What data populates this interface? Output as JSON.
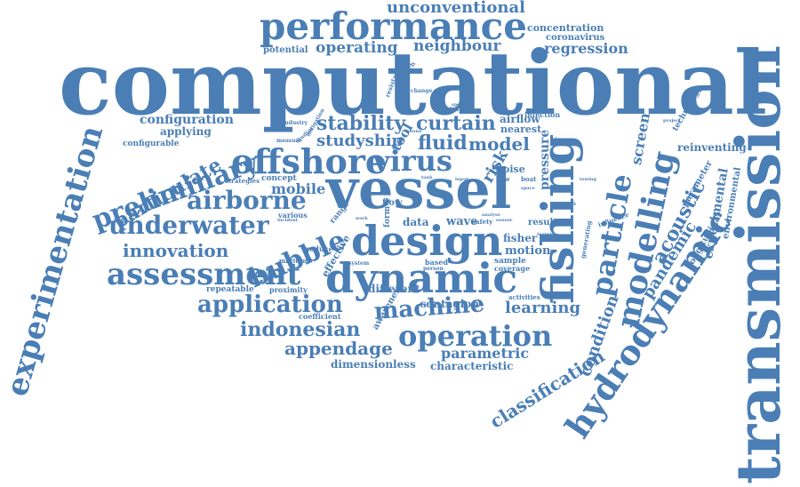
{
  "color": "#4a7eb5",
  "words": {
    "computational": "computational",
    "transmission": "transmission",
    "vessel": "vessel",
    "fishing": "fishing",
    "design": "design",
    "dynamic": "dynamic",
    "performance": "performance",
    "experimentation": "experimentation",
    "assessment": "assessment",
    "offshore": "offshore",
    "virus": "virus",
    "preliminary": "preliminary",
    "hydrodynamic": "hydrodynamic",
    "modelling": "modelling",
    "particle": "particle",
    "operation": "operation",
    "bubble": "bubble",
    "airborne": "airborne",
    "underwater": "underwater",
    "machine": "machine",
    "application": "application",
    "particulate": "particulate",
    "indonesian": "indonesian",
    "innovation": "innovation",
    "appendage": "appendage",
    "unconventional": "unconventional",
    "stability": "stability",
    "curtain": "curtain",
    "fluid": "fluid",
    "model": "model",
    "classification": "classification",
    "acoustic": "acoustic",
    "pandemic": "pandemic",
    "learning": "learning",
    "condition": "condition",
    "screen": "screen",
    "neighbour": "neighbour",
    "regression": "regression",
    "operating": "operating",
    "mobile": "mobile",
    "studyship": "studyship",
    "parametric": "parametric",
    "experimental": "experimental",
    "configuration": "configuration",
    "concentration": "concentration",
    "dimensionless": "dimensionless",
    "characteristic": "characteristic",
    "different": "different",
    "contagion": "contagion",
    "motion": "motion",
    "fisher": "fisher",
    "wave": "wave",
    "tool": "tool",
    "data": "data",
    "risk": "risk",
    "pressure": "pressure",
    "noise": "noise",
    "nearest": "nearest",
    "reinventing": "reinventing",
    "longitudinal": "longitudinal",
    "environmental": "environmental",
    "parameter": "parameter",
    "technology": "technology",
    "coronavirus": "coronavirus",
    "potential": "potential",
    "airflow": "airflow",
    "infection": "infection",
    "applying": "applying",
    "configurable": "configurable",
    "effective": "effective",
    "awareness": "awareness",
    "repeatable": "repeatable",
    "proximity": "proximity",
    "coefficient": "coefficient",
    "flow": "flow",
    "form": "form",
    "result": "result",
    "sample": "sample",
    "coverage": "coverage",
    "activities": "activities",
    "generating": "generating",
    "influence": "influence",
    "strategies": "strategies",
    "concept": "concept",
    "various": "various",
    "range": "range",
    "maritime": "maritime",
    "reduce": "reduce",
    "system": "system",
    "based": "based",
    "person": "person",
    "resistance": "resistance",
    "approach": "approach",
    "change": "change",
    "industry": "industry",
    "measure": "measure",
    "studies": "studies",
    "mitigation": "mitigation",
    "impact": "impact",
    "speed": "speed",
    "bow": "bow",
    "boat": "boat",
    "safety": "safety",
    "viruses": "viruses",
    "towing": "towing",
    "analyse": "analyse",
    "remain": "remain",
    "feature": "feature",
    "project": "project",
    "limited": "limited",
    "phone": "phone",
    "incident": "incident",
    "work": "work",
    "series": "series",
    "sensor": "sensor",
    "space": "space",
    "input": "input",
    "tank": "tank"
  }
}
